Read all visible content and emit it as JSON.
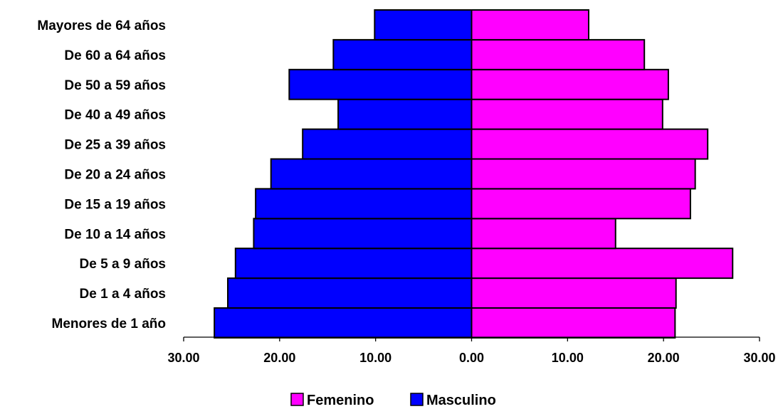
{
  "chart_data": {
    "type": "bar",
    "orientation": "horizontal",
    "style": "population-pyramid",
    "title": "",
    "xlabel": "",
    "ylabel": "",
    "xlim": [
      -30,
      30
    ],
    "x_tick_values": [
      -30,
      -20,
      -10,
      0,
      10,
      20,
      30
    ],
    "x_tick_labels": [
      "30.00",
      "20.00",
      "10.00",
      "0.00",
      "10.00",
      "20.00",
      "30.00"
    ],
    "categories": [
      "Menores de 1 año",
      "De 1 a 4 años",
      "De 5 a 9 años",
      "De 10 a 14 años",
      "De 15 a 19 años",
      "De 20 a 24 años",
      "De 25 a 39 años",
      "De 40 a 49 años",
      "De 50 a 59 años",
      "De 60 a 64 años",
      "Mayores de 64 años"
    ],
    "series": [
      {
        "name": "Femenino",
        "color": "#ff00ff",
        "side": "right",
        "values": [
          21.2,
          21.3,
          27.2,
          15.0,
          22.8,
          23.3,
          24.6,
          19.9,
          20.5,
          18.0,
          12.2
        ]
      },
      {
        "name": "Masculino",
        "color": "#0000ff",
        "side": "left",
        "values": [
          26.8,
          25.4,
          24.6,
          22.7,
          22.5,
          20.9,
          17.6,
          13.9,
          19.0,
          14.4,
          10.1
        ]
      }
    ],
    "grid": false,
    "legend": "bottom-center"
  }
}
